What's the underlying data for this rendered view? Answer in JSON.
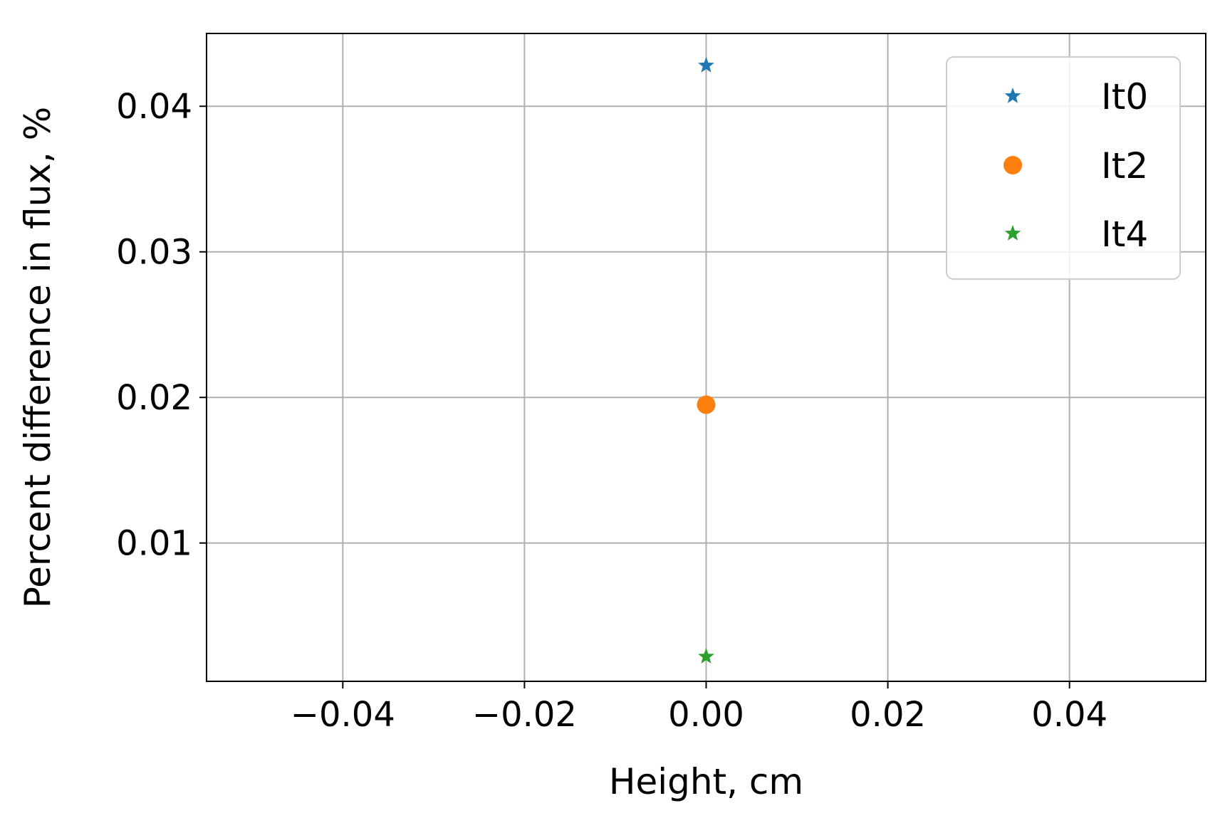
{
  "chart_data": {
    "type": "scatter",
    "xlabel": "Height, cm",
    "ylabel": "Percent difference in flux, %",
    "xlim": [
      -0.055,
      0.055
    ],
    "ylim": [
      0.0005,
      0.045
    ],
    "xticks": [
      -0.04,
      -0.02,
      0.0,
      0.02,
      0.04
    ],
    "xtick_labels": [
      "−0.04",
      "−0.02",
      "0.00",
      "0.02",
      "0.04"
    ],
    "yticks": [
      0.01,
      0.02,
      0.03,
      0.04
    ],
    "ytick_labels": [
      "0.01",
      "0.02",
      "0.03",
      "0.04"
    ],
    "grid": true,
    "legend_position": "top-right",
    "series": [
      {
        "name": "It0",
        "marker": "star",
        "color": "#1f77b4",
        "x": [
          0.0
        ],
        "y": [
          0.0428
        ]
      },
      {
        "name": "It2",
        "marker": "circle",
        "color": "#ff7f0e",
        "x": [
          0.0
        ],
        "y": [
          0.0195
        ]
      },
      {
        "name": "It4",
        "marker": "star",
        "color": "#2ca02c",
        "x": [
          0.0
        ],
        "y": [
          0.0022
        ]
      }
    ]
  }
}
